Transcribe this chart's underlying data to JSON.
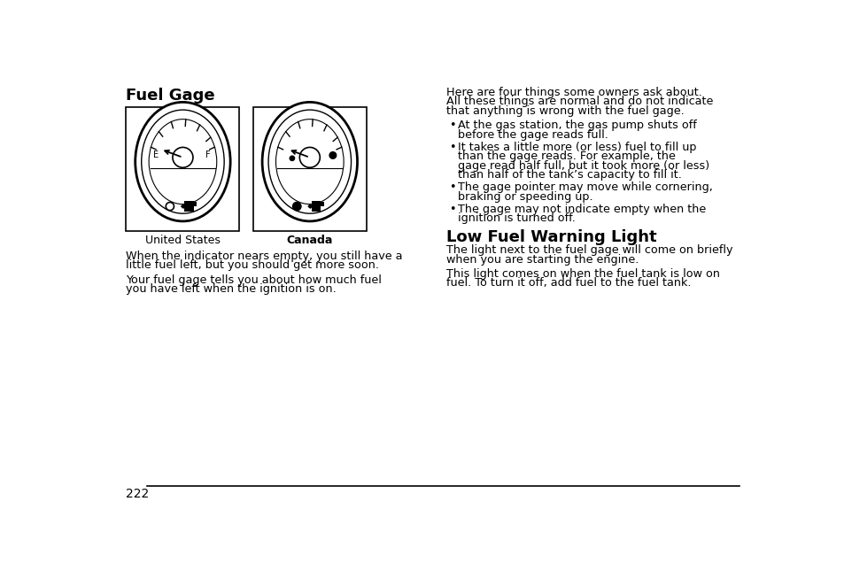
{
  "bg_color": "#ffffff",
  "text_color": "#000000",
  "title_fuel_gage": "Fuel Gage",
  "title_low_fuel": "Low Fuel Warning Light",
  "label_us": "United States",
  "label_canada": "Canada",
  "body_text_left_p1": "When the indicator nears empty, you still have a\nlittle fuel left, but you should get more soon.",
  "body_text_left_p2": "Your fuel gage tells you about how much fuel\nyou have left when the ignition is on.",
  "body_text_right_intro": "Here are four things some owners ask about.\nAll these things are normal and do not indicate\nthat anything is wrong with the fuel gage.",
  "bullet_points": [
    "At the gas station, the gas pump shuts off\n    before the gage reads full.",
    "It takes a little more (or less) fuel to fill up\n    than the gage reads. For example, the\n    gage read half full, but it took more (or less)\n    than half of the tank’s capacity to fill it.",
    "The gage pointer may move while cornering,\n    braking or speeding up.",
    "The gage may not indicate empty when the\n    ignition is turned off."
  ],
  "low_fuel_body_p1": "The light next to the fuel gage will come on briefly\nwhen you are starting the engine.",
  "low_fuel_body_p2": "This light comes on when the fuel tank is low on\nfuel. To turn it off, add fuel to the fuel tank.",
  "page_number": "222",
  "font_size_title": 13,
  "font_size_section": 12,
  "font_size_body": 9.2,
  "font_size_label": 9.0
}
